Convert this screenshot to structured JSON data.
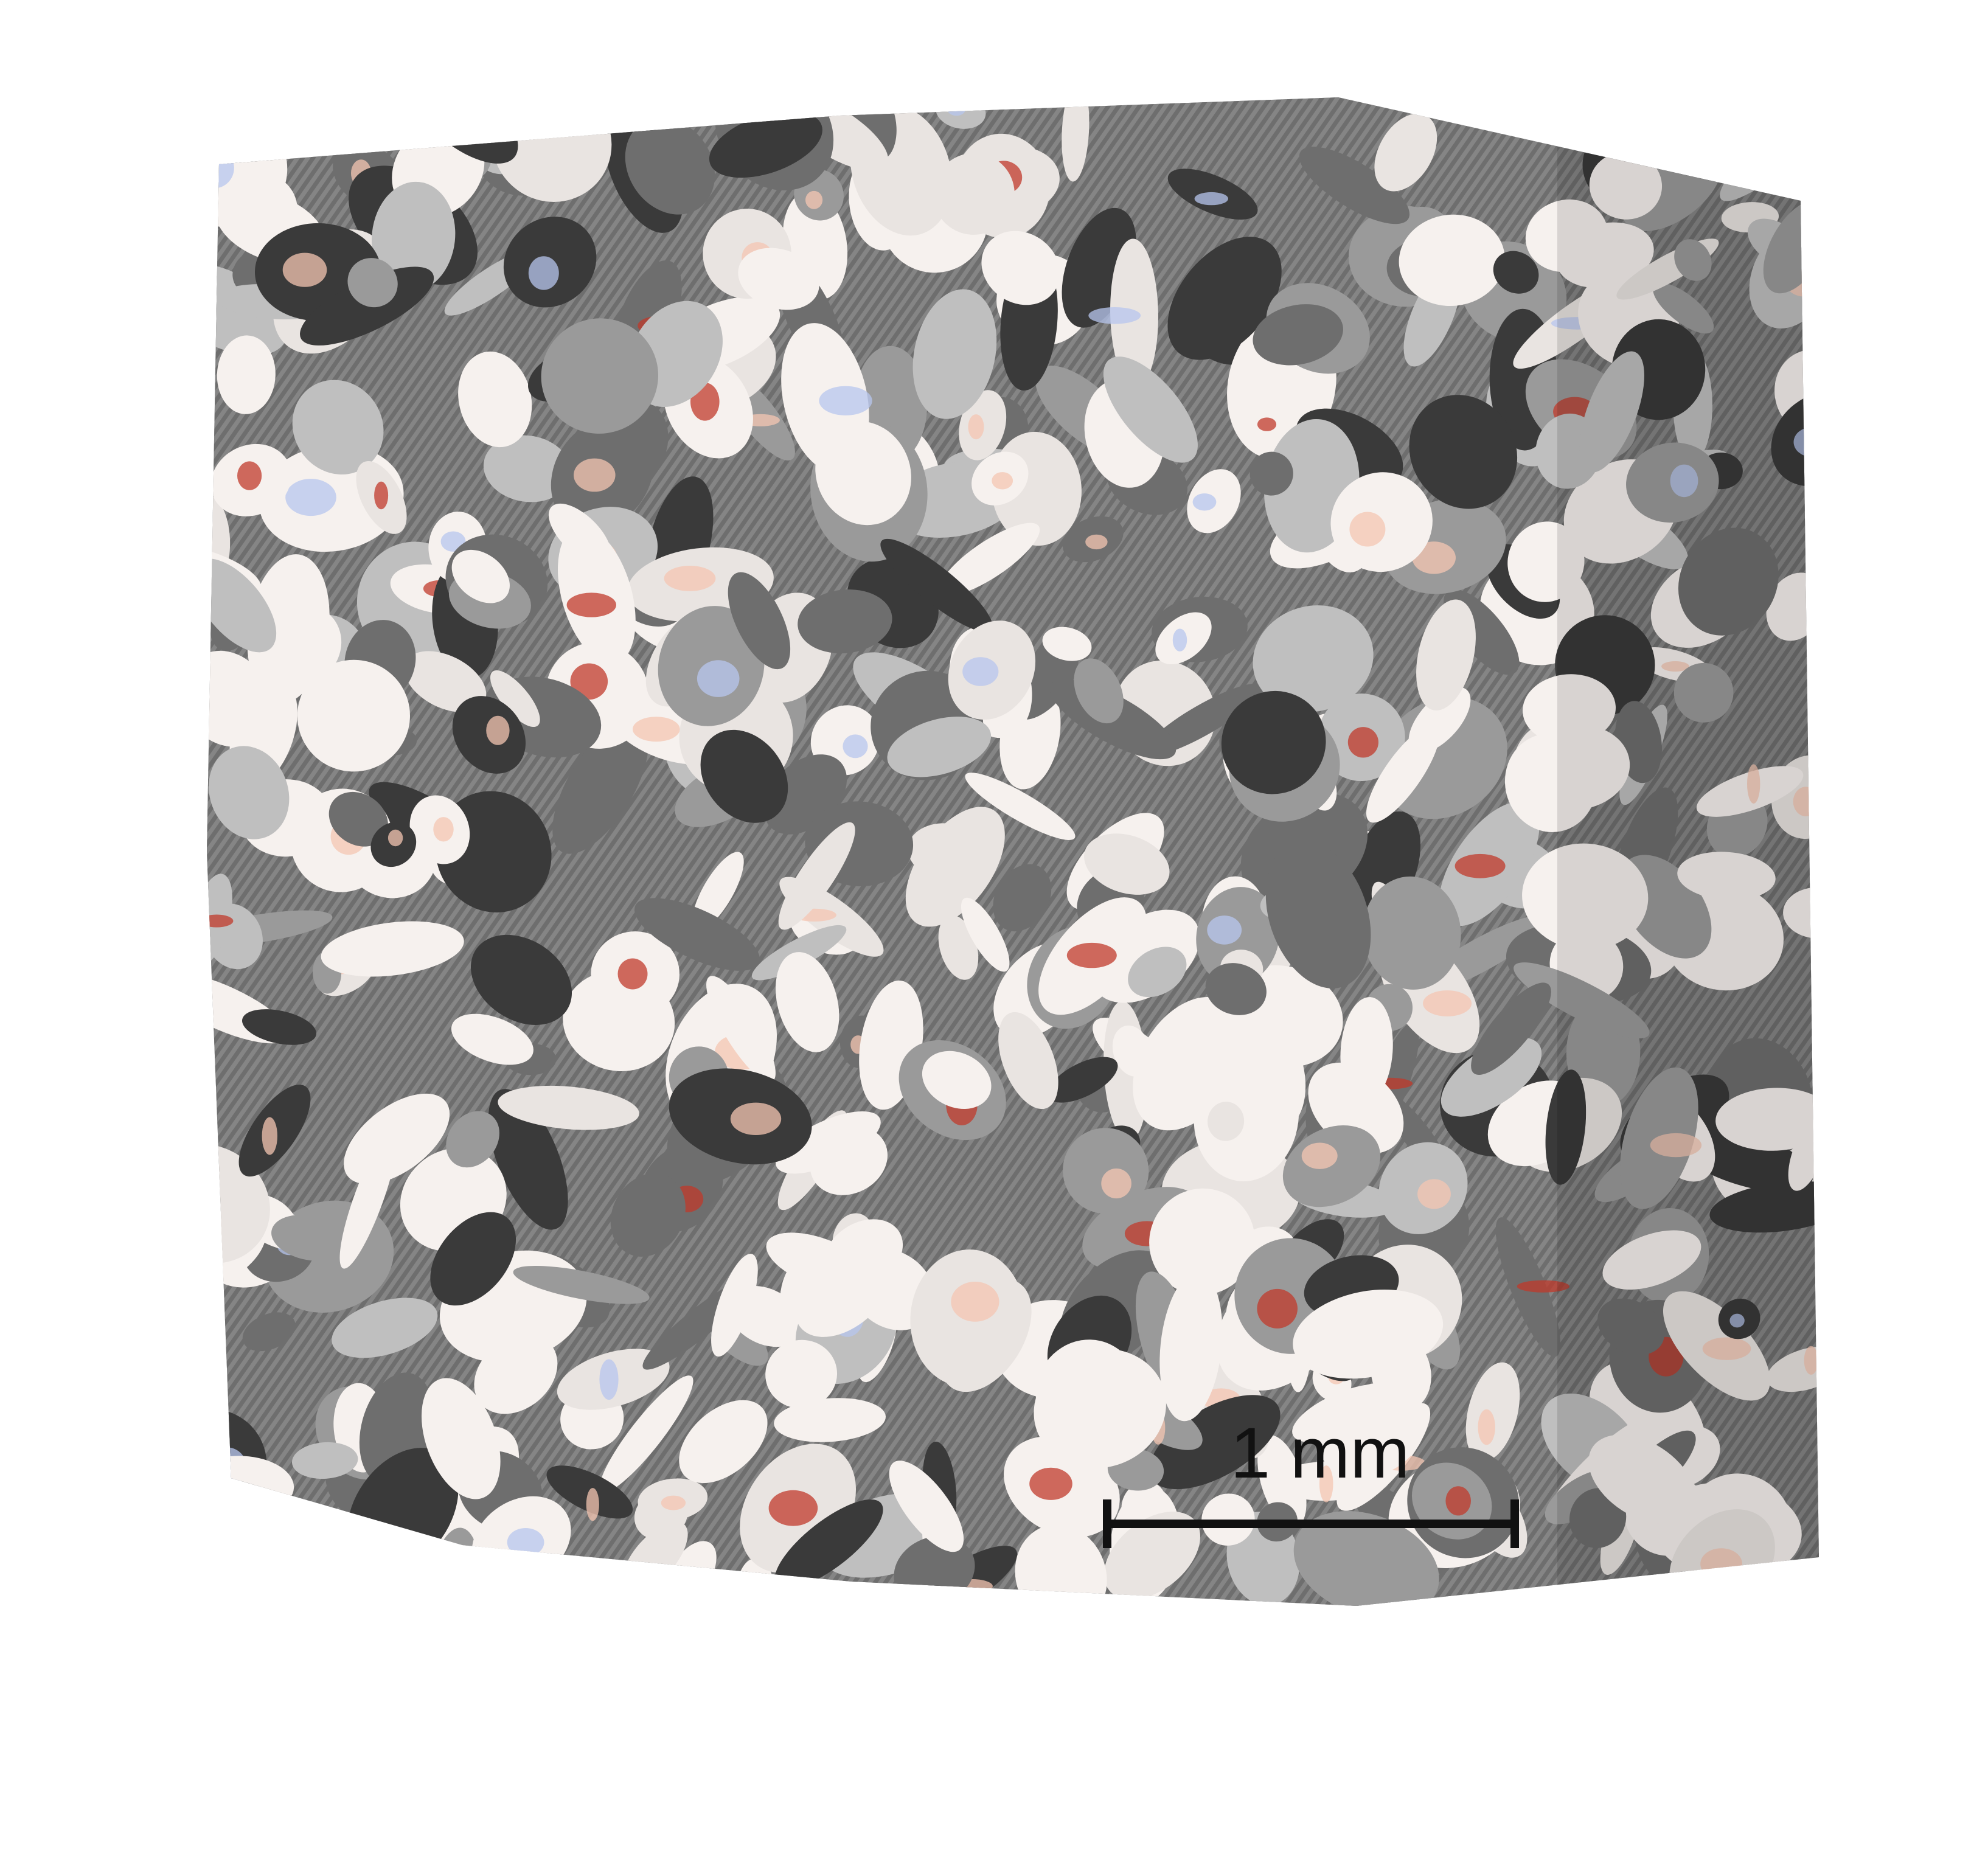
{
  "scale_bar": {
    "label": "1 mm"
  },
  "colors": {
    "background": "#ffffff",
    "porous_solid_light": "#f6f1ee",
    "porous_solid_shadow": "#3a3a3a",
    "stress_high": "#c0392b",
    "stress_mid": "#f4c6b2",
    "stress_low": "#b7c6ee",
    "scale_bar": "#111111"
  },
  "icons": {
    "sample": "porous-cube-render"
  }
}
